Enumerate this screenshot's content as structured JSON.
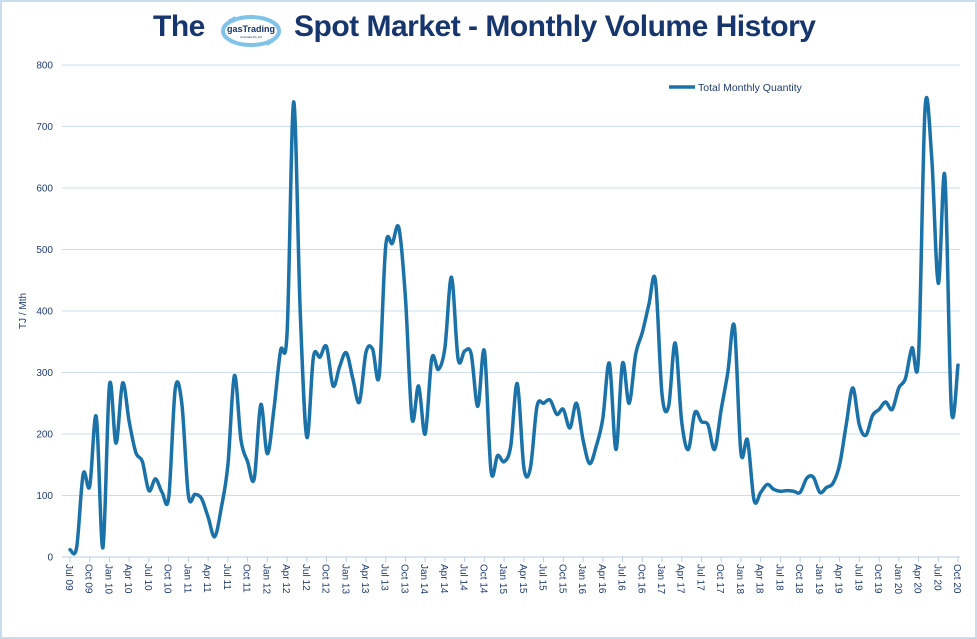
{
  "title": {
    "prefix": "The",
    "logo_text": "gasTrading",
    "logo_subtext": "Australia Pty Ltd",
    "main": "Spot Market - Monthly Volume History"
  },
  "colors": {
    "line": "#1a72a8",
    "title": "#17366e",
    "grid": "#cddcee",
    "axis_text": "#1f3b73"
  },
  "chart_data": {
    "type": "line",
    "title": "The gasTrading Spot Market - Monthly Volume History",
    "xlabel": "",
    "ylabel": "TJ / Mth",
    "ylim": [
      0,
      800
    ],
    "y_ticks": [
      "0",
      "100",
      "200",
      "300",
      "400",
      "500",
      "600",
      "700",
      "800"
    ],
    "grid": true,
    "legend_position": "top-right",
    "x_start": "Jul 09",
    "x_end": "Oct 20",
    "x_tick_labels": [
      "Jul 09",
      "Oct 09",
      "Jan 10",
      "Apr 10",
      "Jul 10",
      "Oct 10",
      "Jan 11",
      "Apr 11",
      "Jul 11",
      "Oct 11",
      "Jan 12",
      "Apr 12",
      "Jul 12",
      "Oct 12",
      "Jan 13",
      "Apr 13",
      "Jul 13",
      "Oct 13",
      "Jan 14",
      "Apr 14",
      "Jul 14",
      "Oct 14",
      "Jan 15",
      "Apr 15",
      "Jul 15",
      "Oct 15",
      "Jan 16",
      "Apr 16",
      "Jul 16",
      "Oct 16",
      "Jan 17",
      "Apr 17",
      "Jul 17",
      "Oct 17",
      "Jan 18",
      "Apr 18",
      "Jul 18",
      "Oct 18",
      "Jan 19",
      "Apr 19",
      "Jul 19",
      "Oct 19",
      "Jan 20",
      "Apr 20",
      "Jul 20",
      "Oct 20"
    ],
    "series": [
      {
        "name": "Total Monthly Quantity",
        "values": [
          12,
          15,
          135,
          115,
          228,
          15,
          280,
          185,
          283,
          220,
          170,
          155,
          108,
          127,
          105,
          97,
          273,
          250,
          100,
          102,
          95,
          65,
          33,
          80,
          150,
          295,
          190,
          155,
          127,
          248,
          168,
          240,
          335,
          365,
          740,
          400,
          195,
          325,
          325,
          342,
          278,
          310,
          332,
          290,
          252,
          333,
          338,
          295,
          505,
          510,
          535,
          420,
          225,
          278,
          200,
          323,
          305,
          340,
          455,
          322,
          335,
          330,
          245,
          335,
          140,
          165,
          155,
          180,
          282,
          145,
          145,
          245,
          250,
          255,
          232,
          240,
          210,
          250,
          190,
          152,
          180,
          225,
          315,
          175,
          315,
          250,
          330,
          365,
          410,
          450,
          265,
          245,
          348,
          220,
          175,
          235,
          220,
          215,
          175,
          240,
          300,
          375,
          170,
          190,
          92,
          105,
          118,
          110,
          107,
          108,
          107,
          105,
          128,
          130,
          105,
          113,
          120,
          150,
          215,
          275,
          215,
          198,
          230,
          240,
          252,
          240,
          275,
          290,
          340,
          325,
          730,
          650,
          445,
          620,
          240,
          312
        ]
      }
    ]
  }
}
